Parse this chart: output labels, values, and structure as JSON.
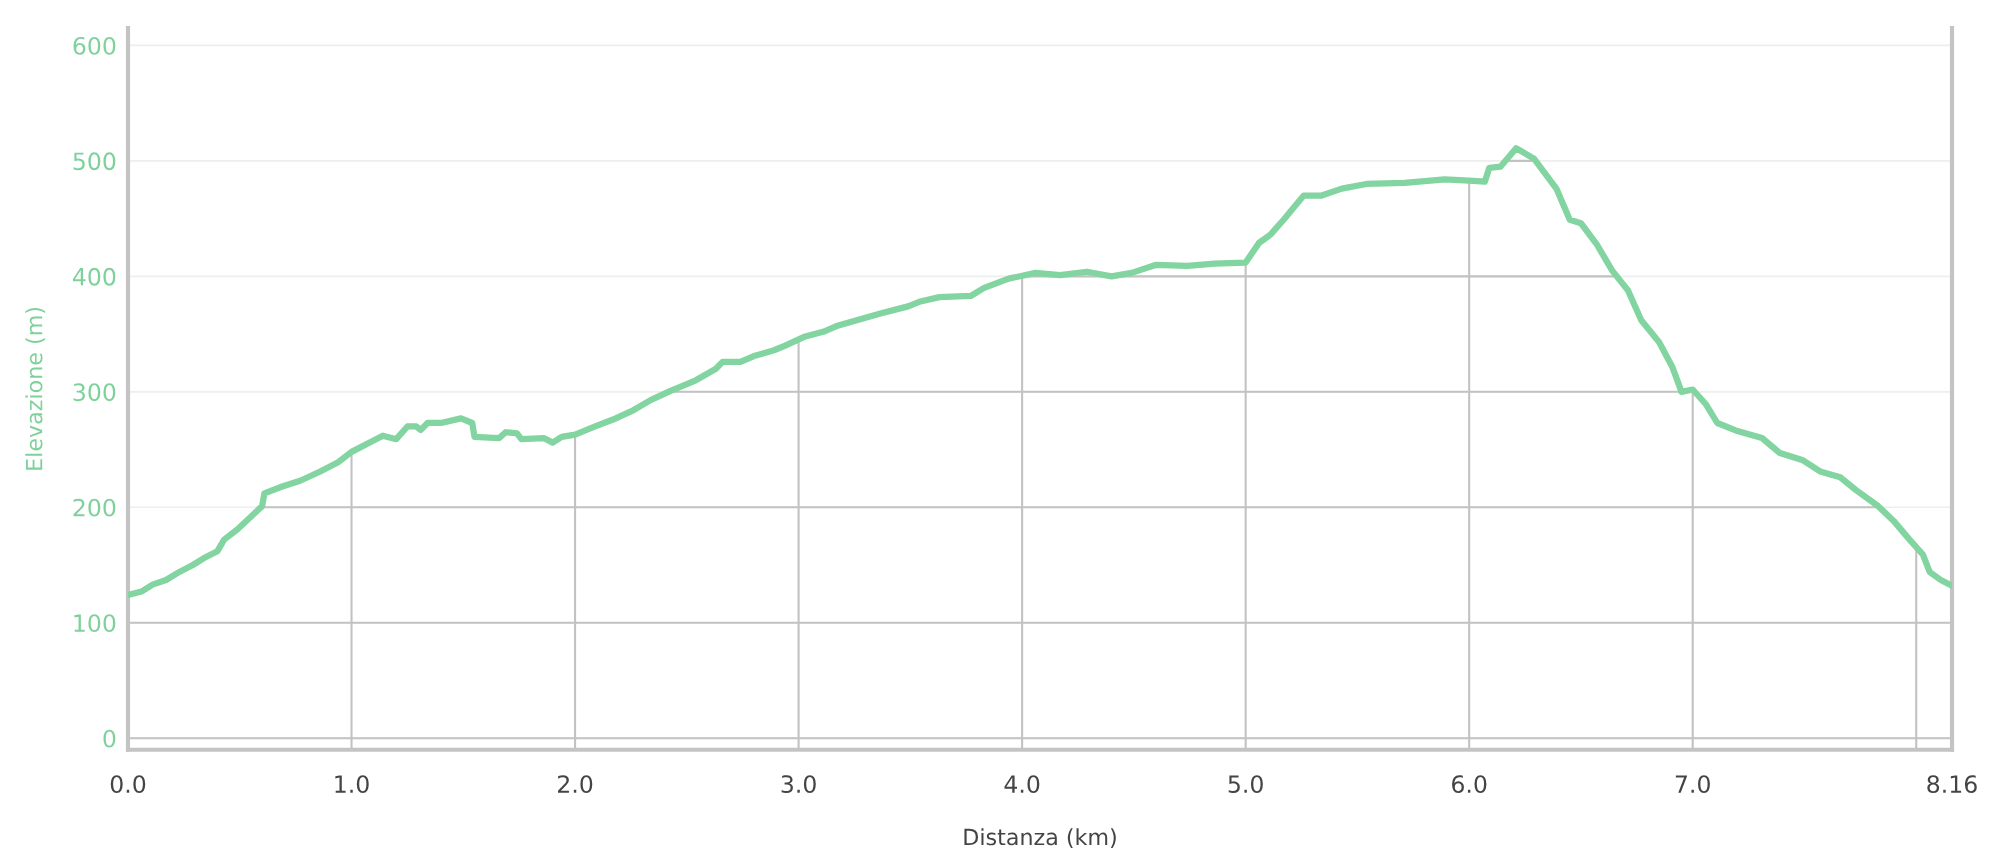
{
  "chart_data": {
    "type": "line",
    "xlabel": "Distanza (km)",
    "ylabel": "Elevazione (m)",
    "xlim": [
      0,
      8.16
    ],
    "xticks": [
      {
        "value": 0,
        "label": "0.0"
      },
      {
        "value": 1,
        "label": "1.0"
      },
      {
        "value": 2,
        "label": "2.0"
      },
      {
        "value": 3,
        "label": "3.0"
      },
      {
        "value": 4,
        "label": "4.0"
      },
      {
        "value": 5,
        "label": "5.0"
      },
      {
        "value": 6,
        "label": "6.0"
      },
      {
        "value": 7,
        "label": "7.0"
      },
      {
        "value": 8,
        "label": null
      },
      8.16
    ],
    "ylim": [
      -10,
      615
    ],
    "yticks": [
      0,
      100,
      200,
      300,
      400,
      500,
      600
    ],
    "grid": true,
    "marker": "none",
    "line_style": "solid",
    "x": [
      0,
      0.06,
      0.11,
      0.17,
      0.23,
      0.29,
      0.34,
      0.4,
      0.43,
      0.49,
      0.54,
      0.6,
      0.61,
      0.69,
      0.77,
      0.86,
      0.94,
      1.0,
      1.09,
      1.14,
      1.2,
      1.25,
      1.29,
      1.31,
      1.34,
      1.4,
      1.49,
      1.54,
      1.55,
      1.66,
      1.69,
      1.74,
      1.76,
      1.86,
      1.9,
      1.94,
      2.0,
      2.09,
      2.17,
      2.26,
      2.34,
      2.43,
      2.54,
      2.63,
      2.66,
      2.74,
      2.8,
      2.89,
      2.94,
      3.03,
      3.11,
      3.17,
      3.26,
      3.37,
      3.49,
      3.54,
      3.63,
      3.77,
      3.83,
      3.94,
      4.06,
      4.17,
      4.29,
      4.4,
      4.49,
      4.6,
      4.74,
      4.86,
      5.0,
      5.06,
      5.11,
      5.17,
      5.23,
      5.26,
      5.34,
      5.43,
      5.54,
      5.71,
      5.89,
      6.0,
      6.07,
      6.09,
      6.14,
      6.21,
      6.29,
      6.34,
      6.39,
      6.45,
      6.5,
      6.57,
      6.64,
      6.71,
      6.77,
      6.85,
      6.91,
      6.95,
      7.0,
      7.06,
      7.11,
      7.2,
      7.31,
      7.39,
      7.49,
      7.57,
      7.66,
      7.73,
      7.83,
      7.9,
      7.97,
      8.03,
      8.06,
      8.11,
      8.16
    ],
    "series": [
      {
        "color": "#82d4a0",
        "values": [
          124,
          127,
          133,
          137,
          144,
          150,
          156,
          162,
          172,
          181,
          190,
          201,
          212,
          218,
          223,
          231,
          239,
          248,
          257,
          262,
          259,
          270,
          270,
          267,
          273,
          273,
          277,
          273,
          261,
          260,
          265,
          264,
          259,
          260,
          256,
          261,
          263,
          270,
          276,
          284,
          293,
          301,
          310,
          320,
          326,
          326,
          331,
          336,
          340,
          348,
          352,
          357,
          362,
          368,
          374,
          378,
          382,
          383,
          390,
          398,
          403,
          401,
          404,
          400,
          403,
          410,
          409,
          411,
          412,
          429,
          436,
          449,
          463,
          470,
          470,
          476,
          480,
          481,
          484,
          483,
          482,
          494,
          495,
          511,
          502,
          489,
          476,
          449,
          446,
          428,
          405,
          388,
          362,
          343,
          321,
          300,
          302,
          289,
          273,
          266,
          260,
          247,
          241,
          231,
          226,
          215,
          201,
          188,
          172,
          159,
          144,
          137,
          132
        ]
      }
    ]
  }
}
